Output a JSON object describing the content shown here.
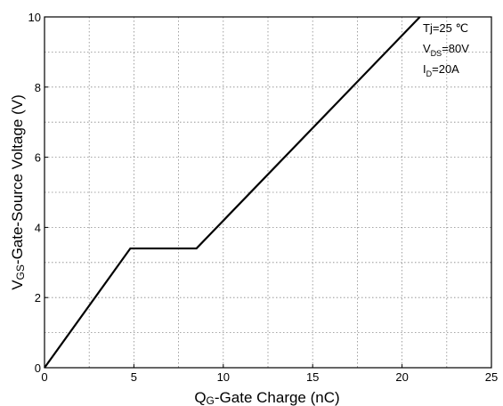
{
  "chart_data": {
    "type": "line",
    "title": "",
    "xlabel": {
      "main": "Q",
      "sub": "G",
      "rest": "-Gate Charge (nC)"
    },
    "ylabel": {
      "main": "V",
      "sub": "GS",
      "rest": "-Gate-Source Voltage (V)"
    },
    "xlim": [
      0,
      25
    ],
    "ylim": [
      0,
      10
    ],
    "x_ticks": [
      "0",
      "5",
      "10",
      "15",
      "20",
      "25"
    ],
    "y_ticks": [
      "0",
      "2",
      "4",
      "6",
      "8",
      "10"
    ],
    "grid": true,
    "series": [
      {
        "x": [
          0,
          4.8,
          8.5,
          21
        ],
        "y": [
          0,
          3.4,
          3.4,
          10
        ],
        "color": "#000000"
      }
    ],
    "annotations": [
      {
        "main": "Tj=25 ℃",
        "sub": "",
        "rest": ""
      },
      {
        "main": "V",
        "sub": "DS",
        "rest": "=80V"
      },
      {
        "main": "I",
        "sub": "D",
        "rest": "=20A"
      }
    ]
  }
}
